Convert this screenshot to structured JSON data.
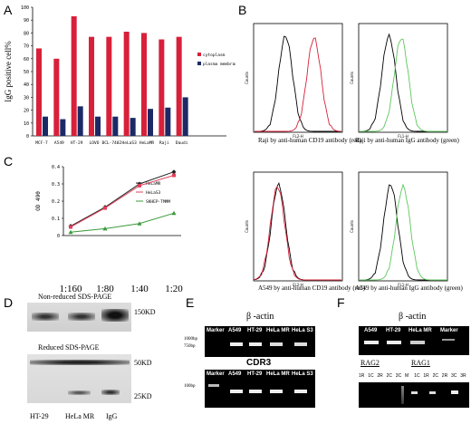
{
  "panels": {
    "A": "A",
    "B": "B",
    "C": "C",
    "D": "D",
    "E": "E",
    "F": "F"
  },
  "chart_a": {
    "type": "bar",
    "ylabel": "IgG positive cell%",
    "ylim": [
      0,
      100
    ],
    "yticks": [
      "0",
      "10",
      "20",
      "30",
      "40",
      "50",
      "60",
      "70",
      "80",
      "90",
      "100"
    ],
    "categories": [
      "MCF-7",
      "A549",
      "HT-29",
      "LOVO",
      "BCL-7402",
      "HeLaS3",
      "HeLaMR",
      "Raji",
      "Daudi"
    ],
    "series": [
      {
        "name": "cytoplasm",
        "color": "#d8203a",
        "values": [
          68,
          60,
          93,
          77,
          77,
          81,
          80,
          75,
          77
        ]
      },
      {
        "name": "plasma membrane",
        "color": "#1b2a66",
        "values": [
          15,
          13,
          23,
          15,
          15,
          14,
          21,
          22,
          30
        ]
      }
    ],
    "legend": [
      "cytoplasm",
      "plasma membrane"
    ]
  },
  "chart_c": {
    "type": "line",
    "ylabel": "OD 490",
    "categories": [
      "1:160",
      "1:80",
      "1:40",
      "1:20"
    ],
    "ylim": [
      0,
      0.4
    ],
    "yticks": [
      "0",
      "0.1",
      "0.2",
      "0.3",
      "0.4"
    ],
    "series": [
      {
        "name": "HeLaMR",
        "color": "#222222",
        "values": [
          0.055,
          0.165,
          0.3,
          0.37
        ]
      },
      {
        "name": "HeLaS3",
        "color": "#e0405a",
        "values": [
          0.05,
          0.16,
          0.29,
          0.35
        ]
      },
      {
        "name": "SKHEP-TMMM",
        "color": "#3a9a3a",
        "values": [
          0.02,
          0.04,
          0.07,
          0.13
        ]
      }
    ]
  },
  "panel_b": {
    "captions": [
      "Raji by anti-human CD19 antibody (red)",
      "Raji by anti-human IgG antibody (green)",
      "A549 by anti-human CD19 antibody (red)",
      "A549 by anti-human IgG antibody (green)"
    ],
    "axis_y": "Counts",
    "axis_x": "FL2-H",
    "axis_x2": "FL1-H"
  },
  "panel_d": {
    "title_top": "Non-reduced SDS-PAGE",
    "title_bottom": "Reduced SDS-PAGE",
    "markers": [
      "150KD",
      "50KD",
      "25KD"
    ],
    "lanes": [
      "HT-29",
      "HeLa MR",
      "IgG"
    ]
  },
  "panel_e": {
    "title1": "β -actin",
    "title2": "CDR3",
    "lanes": [
      "Marker",
      "A549",
      "HT-29",
      "HeLa MR",
      "HeLa S3"
    ],
    "sizes1": [
      "1000bp",
      "750bp"
    ],
    "size2": "100bp"
  },
  "panel_f": {
    "title1": "β -actin",
    "lanes1": [
      "A549",
      "HT-29",
      "HeLa MR",
      "Marker"
    ],
    "rag2": "RAG2",
    "rag1": "RAG1",
    "lanes2": [
      "1R",
      "1C",
      "2R",
      "2C",
      "3C",
      "M",
      "1C",
      "1R",
      "2C",
      "2R",
      "3C",
      "3R"
    ]
  }
}
